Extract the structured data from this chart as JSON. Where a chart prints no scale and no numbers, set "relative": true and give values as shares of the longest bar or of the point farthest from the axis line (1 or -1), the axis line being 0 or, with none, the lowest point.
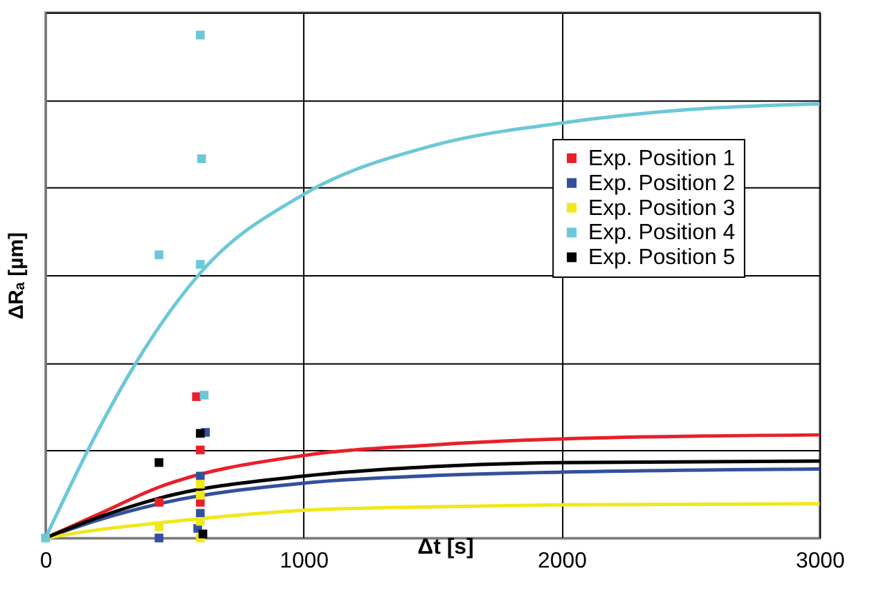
{
  "chart_data": {
    "type": "scatter",
    "xlabel": "Δt [s]",
    "ylabel": "ΔRₐ [µm]",
    "relative": true,
    "xlim": [
      0,
      3000
    ],
    "xticks": [
      0,
      1000,
      2000,
      3000
    ],
    "grid": true,
    "legend": "top right",
    "marker": "square",
    "series": [
      {
        "name": "Exp. Position 1",
        "color": "#e8202a",
        "x": [
          440,
          585,
          600,
          600
        ],
        "values": [
          0.071,
          0.281,
          0.175,
          0.071
        ]
      },
      {
        "name": "Exp. Position 2",
        "color": "#34509c",
        "x": [
          440,
          620,
          600,
          600,
          590
        ],
        "values": [
          0.0,
          0.21,
          0.123,
          0.049,
          0.019
        ]
      },
      {
        "name": "Exp. Position 3",
        "color": "#f0e81c",
        "x": [
          440,
          600,
          600,
          600,
          600
        ],
        "values": [
          0.022,
          0.107,
          0.085,
          0.033,
          0.0
        ]
      },
      {
        "name": "Exp. Position 4",
        "color": "#6cc8d8",
        "x": [
          0,
          440,
          600,
          605,
          600,
          615
        ],
        "values": [
          0.0,
          0.563,
          1.0,
          0.754,
          0.544,
          0.284
        ]
      },
      {
        "name": "Exp. Position 5",
        "color": "#000000",
        "x": [
          440,
          600,
          610
        ],
        "values": [
          0.15,
          0.208,
          0.008
        ]
      },
      {
        "type": "line",
        "marker": "none",
        "color": "#e8202a",
        "x": [
          0,
          200,
          440,
          1000,
          1500,
          2000,
          3000
        ],
        "values": [
          0,
          0.046,
          0.101,
          0.164,
          0.185,
          0.197,
          0.205
        ]
      },
      {
        "type": "line",
        "marker": "none",
        "color": "#34509c",
        "x": [
          0,
          200,
          440,
          1000,
          1500,
          2000,
          3000
        ],
        "values": [
          0,
          0.035,
          0.068,
          0.109,
          0.124,
          0.131,
          0.137
        ]
      },
      {
        "type": "line",
        "marker": "none",
        "color": "#f0e81c",
        "x": [
          0,
          200,
          440,
          1000,
          1500,
          2000,
          3000
        ],
        "values": [
          0,
          0.016,
          0.03,
          0.055,
          0.062,
          0.066,
          0.068
        ]
      },
      {
        "type": "line",
        "marker": "none",
        "color": "#6cc8d8",
        "x": [
          0,
          200,
          340,
          600,
          1000,
          1500,
          2000,
          2500,
          3000
        ],
        "values": [
          0,
          0.21,
          0.339,
          0.527,
          0.683,
          0.78,
          0.825,
          0.852,
          0.863
        ]
      },
      {
        "type": "line",
        "marker": "none",
        "color": "#000000",
        "x": [
          0,
          200,
          440,
          1000,
          1500,
          2000,
          3000
        ],
        "values": [
          0,
          0.04,
          0.079,
          0.123,
          0.142,
          0.15,
          0.153
        ]
      }
    ]
  }
}
